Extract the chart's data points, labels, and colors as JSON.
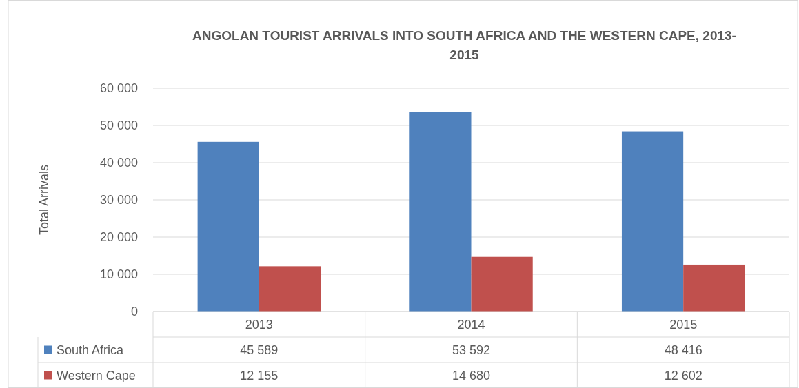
{
  "chart_data": {
    "type": "bar",
    "title": "ANGOLAN TOURIST ARRIVALS INTO SOUTH AFRICA AND THE WESTERN CAPE, 2013-2015",
    "ylabel": "Total Arrivals",
    "categories": [
      "2013",
      "2014",
      "2015"
    ],
    "series": [
      {
        "name": "South Africa",
        "color": "#4f81bd",
        "values": [
          45589,
          53592,
          48416
        ],
        "value_labels": [
          "45 589",
          "53 592",
          "48 416"
        ]
      },
      {
        "name": "Western Cape",
        "color": "#c0504d",
        "values": [
          12155,
          14680,
          12602
        ],
        "value_labels": [
          "12 155",
          "14 680",
          "12 602"
        ]
      }
    ],
    "ylim": [
      0,
      60000
    ],
    "yticks": [
      {
        "value": 0,
        "label": "0"
      },
      {
        "value": 10000,
        "label": "10 000"
      },
      {
        "value": 20000,
        "label": "20 000"
      },
      {
        "value": 30000,
        "label": "30 000"
      },
      {
        "value": 40000,
        "label": "40 000"
      },
      {
        "value": 50000,
        "label": "50 000"
      },
      {
        "value": 60000,
        "label": "60 000"
      }
    ],
    "grid": "y",
    "legend": "bottom"
  }
}
